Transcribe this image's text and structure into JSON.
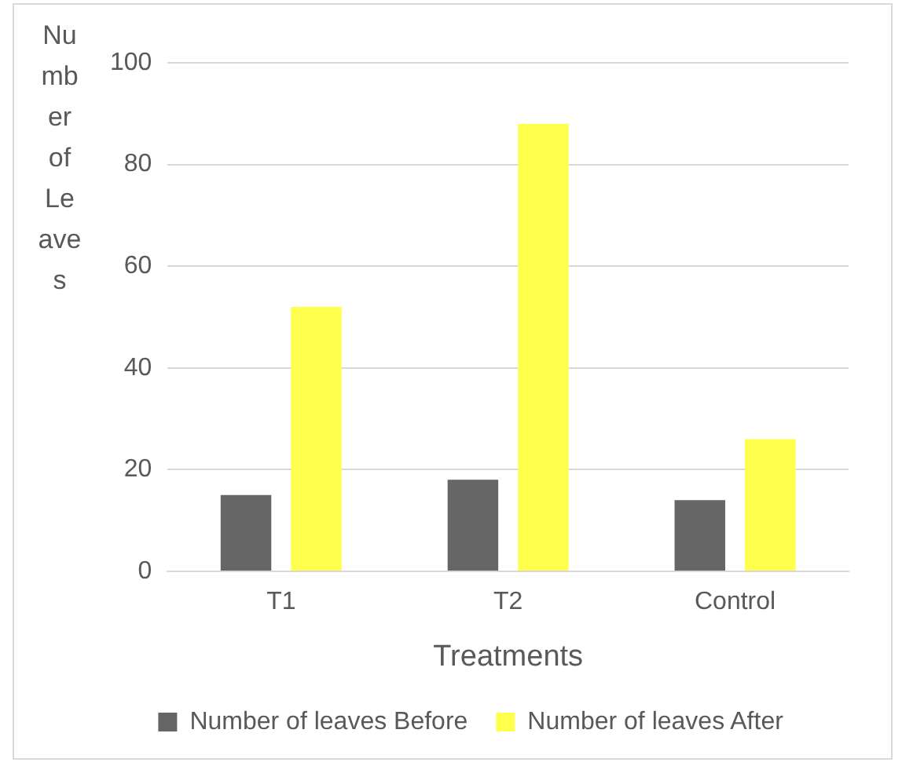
{
  "chart_data": {
    "type": "bar",
    "xlabel": "Treatments",
    "ylabel": "Number of Leaves",
    "categories": [
      "T1",
      "T2",
      "Control"
    ],
    "series": [
      {
        "name": "Number of leaves Before",
        "color": "#666666",
        "values": [
          15,
          18,
          14
        ]
      },
      {
        "name": "Number of leaves After",
        "color": "#ffff4d",
        "values": [
          52,
          88,
          26
        ]
      }
    ],
    "ylim": [
      0,
      100
    ],
    "yticks": [
      0,
      20,
      40,
      60,
      80,
      100
    ],
    "grid": "y",
    "legend": "bottom"
  }
}
